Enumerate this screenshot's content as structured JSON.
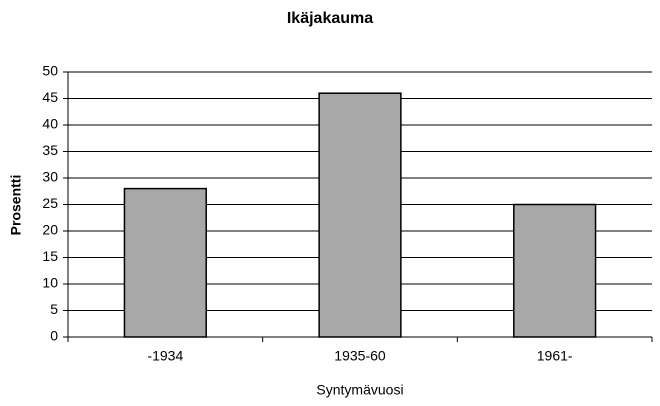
{
  "chart_data": {
    "type": "bar",
    "title": "Ikäjakauma",
    "x_label": "Syntymävuosi",
    "y_label": "Prosentti",
    "categories": [
      "-1934",
      "1935-60",
      "1961-"
    ],
    "values": [
      28,
      46,
      25
    ],
    "color": "#a8a8a8",
    "ylim": [
      0,
      50
    ],
    "yticks": [
      0,
      5,
      10,
      15,
      20,
      25,
      30,
      35,
      40,
      45,
      50
    ],
    "grid": true
  }
}
